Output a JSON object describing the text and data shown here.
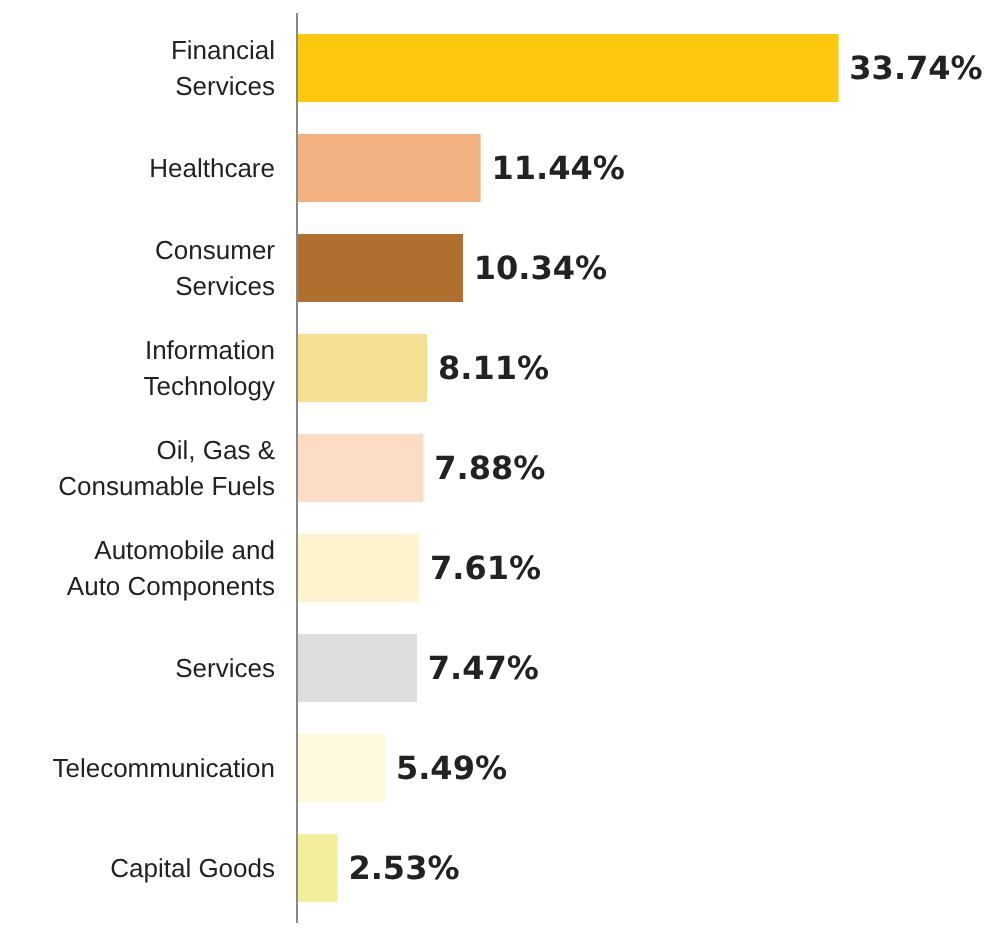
{
  "chart_data": {
    "type": "bar",
    "orientation": "horizontal",
    "grid": false,
    "categories": [
      "Financial\nServices",
      "Healthcare",
      "Consumer\nServices",
      "Information\nTechnology",
      "Oil, Gas &\nConsumable Fuels",
      "Automobile and\nAuto Components",
      "Services",
      "Telecommunication",
      "Capital Goods"
    ],
    "values": [
      33.74,
      11.44,
      10.34,
      8.11,
      7.88,
      7.61,
      7.47,
      5.49,
      2.53
    ],
    "value_labels": [
      "33.74%",
      "11.44%",
      "10.34%",
      "8.11%",
      "7.88%",
      "7.61%",
      "7.47%",
      "5.49%",
      "2.53%"
    ],
    "colors": [
      "#fec90c",
      "#f2b282",
      "#b06f2e",
      "#f5df92",
      "#fddcc5",
      "#fdf3cc",
      "#dddddd",
      "#fdf9dd",
      "#f3ee9b"
    ]
  }
}
